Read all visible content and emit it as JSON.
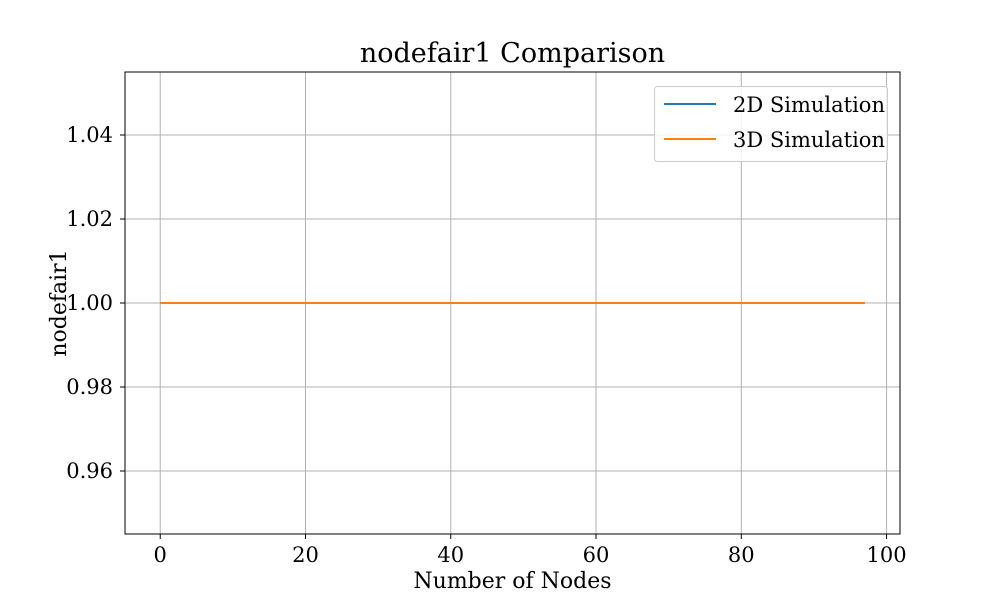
{
  "chart_data": {
    "type": "line",
    "title": "nodefair1 Comparison",
    "xlabel": "Number of Nodes",
    "ylabel": "nodefair1",
    "xlim": [
      -4.85,
      101.85
    ],
    "ylim": [
      0.945,
      1.055
    ],
    "xticks": [
      0,
      20,
      40,
      60,
      80,
      100
    ],
    "yticks": [
      0.96,
      0.98,
      1.0,
      1.02,
      1.04
    ],
    "xtick_labels": [
      "0",
      "20",
      "40",
      "60",
      "80",
      "100"
    ],
    "ytick_labels": [
      "0.96",
      "0.98",
      "1.00",
      "1.02",
      "1.04"
    ],
    "grid": true,
    "legend_position": "top-right",
    "series": [
      {
        "name": "2D Simulation",
        "color": "#1f77b4",
        "x": [
          0,
          97
        ],
        "y": [
          1.0,
          1.0
        ]
      },
      {
        "name": "3D Simulation",
        "color": "#ff7f0e",
        "x": [
          0,
          97
        ],
        "y": [
          1.0,
          1.0
        ]
      }
    ]
  }
}
